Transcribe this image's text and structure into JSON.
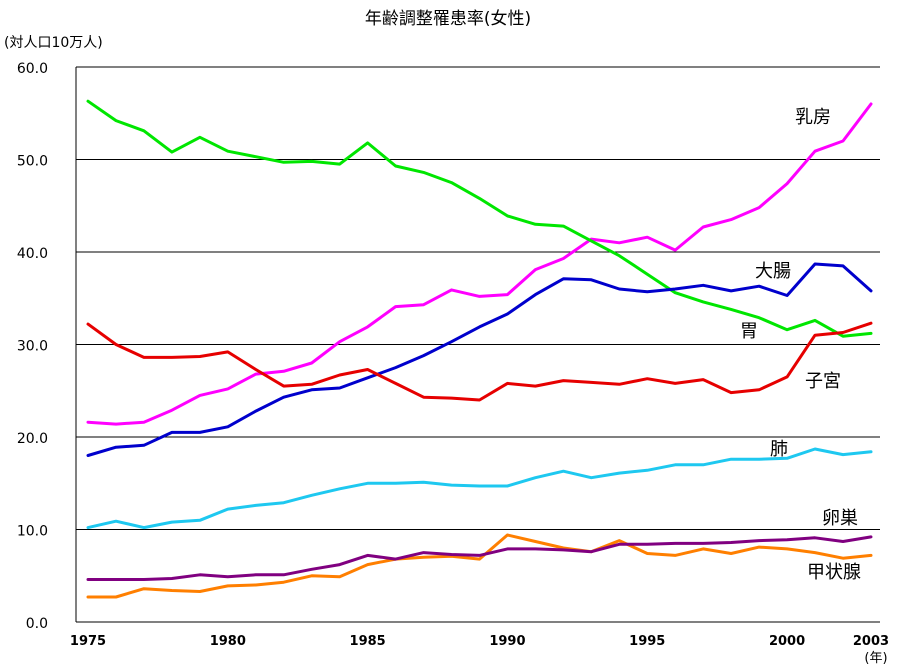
{
  "chart_data": {
    "type": "line",
    "title": "年齢調整罹患率(女性)",
    "ylabel": "(対人口10万人)",
    "xlabel": "(年)",
    "ylim": [
      0,
      60
    ],
    "yticks": [
      "0.0",
      "10.0",
      "20.0",
      "30.0",
      "40.0",
      "50.0",
      "60.0"
    ],
    "xticks": [
      "1975",
      "1980",
      "1985",
      "1990",
      "1995",
      "2000",
      "2003"
    ],
    "grid": "horizontal",
    "x": [
      1975,
      1976,
      1977,
      1978,
      1979,
      1980,
      1981,
      1982,
      1983,
      1984,
      1985,
      1986,
      1987,
      1988,
      1989,
      1990,
      1991,
      1992,
      1993,
      1994,
      1995,
      1996,
      1997,
      1998,
      1999,
      2000,
      2001,
      2002,
      2003
    ],
    "series": [
      {
        "name": "乳房",
        "color": "#ff00ff",
        "values": [
          21.6,
          21.4,
          21.6,
          22.9,
          24.5,
          25.2,
          26.8,
          27.1,
          28.0,
          30.3,
          31.9,
          34.1,
          34.3,
          35.9,
          35.2,
          35.4,
          38.1,
          39.3,
          41.4,
          41.0,
          41.6,
          40.2,
          42.7,
          43.5,
          44.8,
          47.4,
          50.9,
          52.0,
          56.0
        ]
      },
      {
        "name": "胃",
        "color": "#00e600",
        "values": [
          56.3,
          54.2,
          53.1,
          50.8,
          52.4,
          50.9,
          50.3,
          49.7,
          49.8,
          49.5,
          51.8,
          49.3,
          48.6,
          47.5,
          45.8,
          43.9,
          43.0,
          42.8,
          41.2,
          39.6,
          37.6,
          35.6,
          34.6,
          33.8,
          32.9,
          31.6,
          32.6,
          30.9,
          31.2
        ]
      },
      {
        "name": "大腸",
        "color": "#0000cc",
        "values": [
          18.0,
          18.9,
          19.1,
          20.5,
          20.5,
          21.1,
          22.8,
          24.3,
          25.1,
          25.3,
          26.4,
          27.5,
          28.8,
          30.3,
          31.9,
          33.3,
          35.4,
          37.1,
          37.0,
          36.0,
          35.7,
          36.0,
          36.4,
          35.8,
          36.3,
          35.3,
          38.7,
          38.5,
          35.8
        ]
      },
      {
        "name": "子宮",
        "color": "#e60000",
        "values": [
          32.2,
          30.0,
          28.6,
          28.6,
          28.7,
          29.2,
          27.3,
          25.5,
          25.7,
          26.7,
          27.3,
          25.8,
          24.3,
          24.2,
          24.0,
          25.8,
          25.5,
          26.1,
          25.9,
          25.7,
          26.3,
          25.8,
          26.2,
          24.8,
          25.1,
          26.5,
          31.0,
          31.3,
          32.3
        ]
      },
      {
        "name": "肺",
        "color": "#1ec8f0",
        "values": [
          10.2,
          10.9,
          10.2,
          10.8,
          11.0,
          12.2,
          12.6,
          12.9,
          13.7,
          14.4,
          15.0,
          15.0,
          15.1,
          14.8,
          14.7,
          14.7,
          15.6,
          16.3,
          15.6,
          16.1,
          16.4,
          17.0,
          17.0,
          17.6,
          17.6,
          17.7,
          18.7,
          18.1,
          18.4
        ]
      },
      {
        "name": "卵巣",
        "color": "#ff7f00",
        "values": [
          2.7,
          2.7,
          3.6,
          3.4,
          3.3,
          3.9,
          4.0,
          4.3,
          5.0,
          4.9,
          6.2,
          6.8,
          7.0,
          7.1,
          6.8,
          9.4,
          8.7,
          8.0,
          7.6,
          8.8,
          7.4,
          7.2,
          7.9,
          7.4,
          8.1,
          7.9,
          7.5,
          6.9,
          7.2
        ]
      },
      {
        "name": "甲状腺",
        "color": "#800080",
        "values": [
          4.6,
          4.6,
          4.6,
          4.7,
          5.1,
          4.9,
          5.1,
          5.1,
          5.7,
          6.2,
          7.2,
          6.8,
          7.5,
          7.3,
          7.2,
          7.9,
          7.9,
          7.8,
          7.6,
          8.4,
          8.4,
          8.5,
          8.5,
          8.6,
          8.8,
          8.9,
          9.1,
          8.7,
          9.2
        ]
      }
    ],
    "labels": [
      {
        "text": "乳房",
        "series": "乳房"
      },
      {
        "text": "大腸",
        "series": "大腸"
      },
      {
        "text": "胃",
        "series": "胃"
      },
      {
        "text": "子宮",
        "series": "子宮"
      },
      {
        "text": "肺",
        "series": "肺"
      },
      {
        "text": "卵巣",
        "series": "卵巣"
      },
      {
        "text": "甲状腺",
        "series": "甲状腺"
      }
    ]
  }
}
